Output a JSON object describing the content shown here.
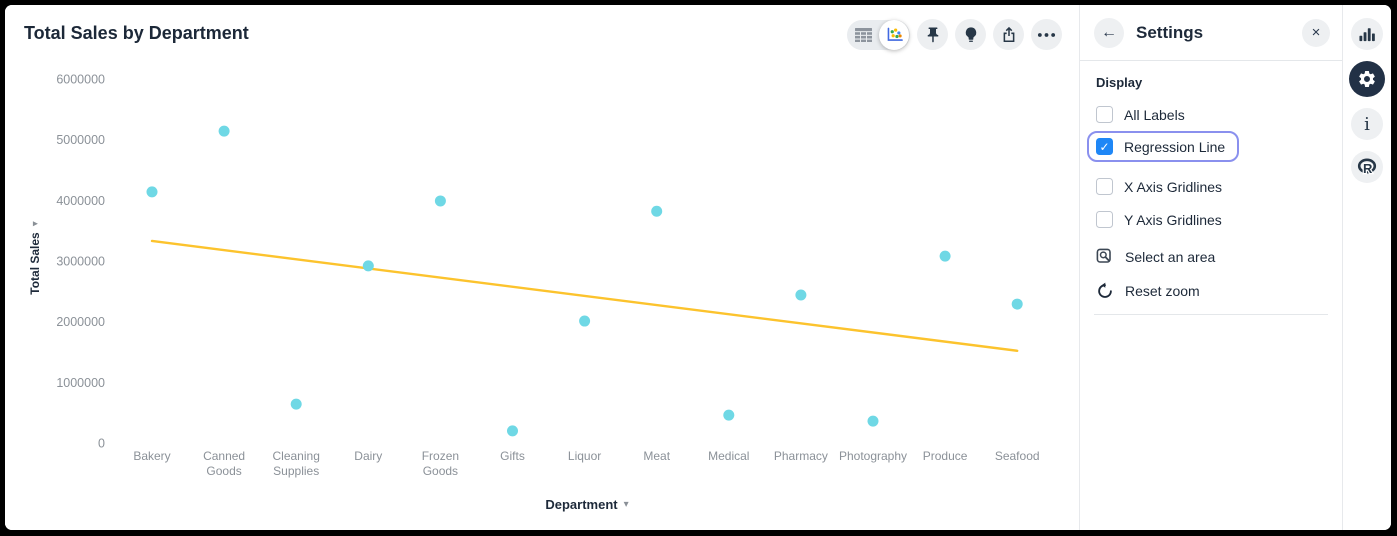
{
  "chart": {
    "title": "Total Sales by Department",
    "y_axis": {
      "label": "Total Sales",
      "caret": "▾"
    },
    "x_axis": {
      "label": "Department",
      "caret": "▾"
    }
  },
  "toolbar": {
    "view_toggle": [
      "table-view",
      "chart-view"
    ],
    "selected_view": "chart-view",
    "buttons": [
      "pin",
      "insights-bulb",
      "export",
      "more-options"
    ]
  },
  "chart_data": {
    "type": "scatter",
    "title": "Total Sales by Department",
    "xlabel": "Department",
    "ylabel": "Total Sales",
    "categories": [
      "Bakery",
      "Canned Goods",
      "Cleaning Supplies",
      "Dairy",
      "Frozen Goods",
      "Gifts",
      "Liquor",
      "Meat",
      "Medical",
      "Pharmacy",
      "Photography",
      "Produce",
      "Seafood"
    ],
    "values": [
      4140000,
      5140000,
      640000,
      2920000,
      3990000,
      200000,
      2010000,
      3820000,
      460000,
      2440000,
      360000,
      3080000,
      2290000
    ],
    "ylim": [
      0,
      6000000
    ],
    "yticks": [
      0,
      1000000,
      2000000,
      3000000,
      4000000,
      5000000,
      6000000
    ],
    "grid": "off",
    "legend": "none",
    "point_color": "#6fd8e5",
    "regression_line": {
      "visible": true,
      "color": "#fcc32d",
      "start_value": 3330000,
      "end_value": 1520000
    }
  },
  "settings": {
    "back_glyph": "←",
    "title": "Settings",
    "close_glyph": "×",
    "section_label": "Display",
    "checkboxes": [
      {
        "label": "All Labels",
        "checked": false,
        "focused": false
      },
      {
        "label": "Regression Line",
        "checked": true,
        "focused": true
      },
      {
        "label": "X Axis Gridlines",
        "checked": false,
        "focused": false
      },
      {
        "label": "Y Axis Gridlines",
        "checked": false,
        "focused": false
      }
    ],
    "actions": [
      {
        "label": "Select an area",
        "icon": "select-area-icon"
      },
      {
        "label": "Reset zoom",
        "icon": "reset-zoom-icon"
      }
    ]
  },
  "right_rail": {
    "icons": [
      "bar-chart",
      "settings-gear",
      "info",
      "r-language"
    ],
    "active": "settings-gear"
  }
}
